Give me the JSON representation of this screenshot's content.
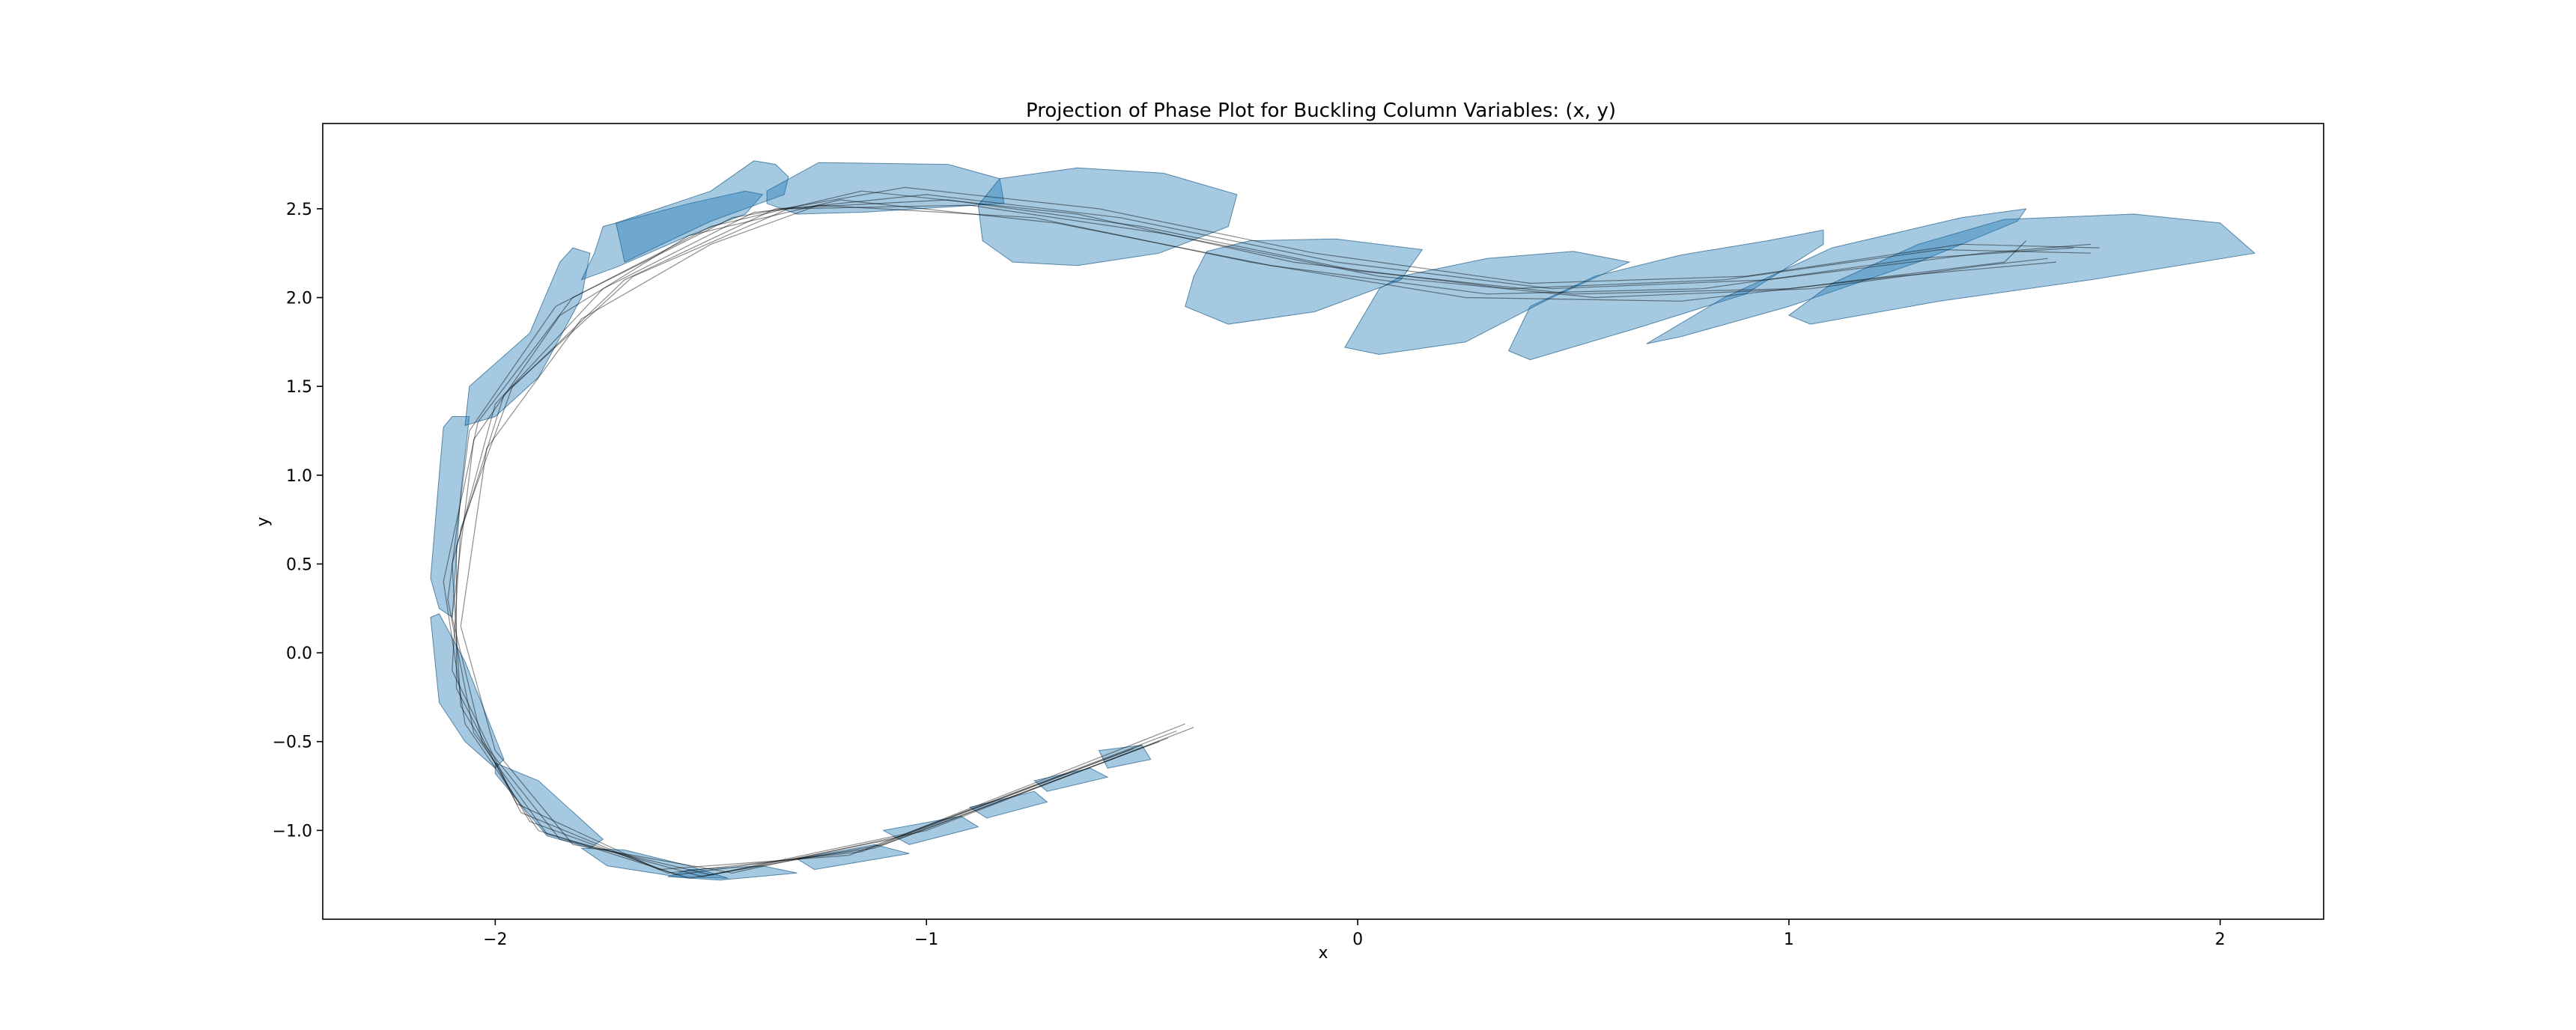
{
  "chart_data": {
    "type": "line",
    "title": "Projection of Phase Plot for Buckling Column Variables: (x, y)",
    "xlabel": "x",
    "ylabel": "y",
    "xlim": [
      -2.4,
      2.24
    ],
    "ylim": [
      -1.5,
      2.98
    ],
    "xticks": [
      -2,
      -1,
      0,
      1,
      2
    ],
    "xtick_labels": [
      "−2",
      "−1",
      "0",
      "1",
      "2"
    ],
    "yticks": [
      -1.0,
      -0.5,
      0.0,
      0.5,
      1.0,
      1.5,
      2.0,
      2.5
    ],
    "ytick_labels": [
      "−1.0",
      "−0.5",
      "0.0",
      "0.5",
      "1.0",
      "1.5",
      "2.0",
      "2.5"
    ],
    "grid": false,
    "colors": {
      "region_fill": "#1f77b4",
      "trajectory": "#000000"
    },
    "reachable_regions": [
      [
        [
          -0.6,
          -0.55
        ],
        [
          -0.5,
          -0.52
        ],
        [
          -0.48,
          -0.6
        ],
        [
          -0.58,
          -0.65
        ]
      ],
      [
        [
          -0.75,
          -0.72
        ],
        [
          -0.62,
          -0.65
        ],
        [
          -0.58,
          -0.7
        ],
        [
          -0.72,
          -0.78
        ]
      ],
      [
        [
          -0.9,
          -0.87
        ],
        [
          -0.75,
          -0.78
        ],
        [
          -0.72,
          -0.84
        ],
        [
          -0.86,
          -0.93
        ]
      ],
      [
        [
          -1.1,
          -1.0
        ],
        [
          -0.92,
          -0.92
        ],
        [
          -0.88,
          -0.98
        ],
        [
          -1.04,
          -1.08
        ]
      ],
      [
        [
          -1.3,
          -1.16
        ],
        [
          -1.12,
          -1.08
        ],
        [
          -1.04,
          -1.13
        ],
        [
          -1.26,
          -1.22
        ]
      ],
      [
        [
          -1.55,
          -1.22
        ],
        [
          -1.38,
          -1.2
        ],
        [
          -1.3,
          -1.24
        ],
        [
          -1.48,
          -1.28
        ],
        [
          -1.6,
          -1.26
        ]
      ],
      [
        [
          -1.8,
          -1.1
        ],
        [
          -1.7,
          -1.11
        ],
        [
          -1.55,
          -1.2
        ],
        [
          -1.46,
          -1.27
        ],
        [
          -1.58,
          -1.26
        ],
        [
          -1.74,
          -1.2
        ]
      ],
      [
        [
          -2.0,
          -0.62
        ],
        [
          -1.9,
          -0.72
        ],
        [
          -1.75,
          -1.05
        ],
        [
          -1.78,
          -1.1
        ],
        [
          -1.88,
          -1.03
        ],
        [
          -2.0,
          -0.68
        ]
      ],
      [
        [
          -2.13,
          0.22
        ],
        [
          -2.07,
          -0.05
        ],
        [
          -1.98,
          -0.6
        ],
        [
          -2.0,
          -0.65
        ],
        [
          -2.07,
          -0.5
        ],
        [
          -2.13,
          -0.28
        ],
        [
          -2.15,
          0.2
        ]
      ],
      [
        [
          -2.1,
          1.33
        ],
        [
          -2.06,
          1.33
        ],
        [
          -2.08,
          0.9
        ],
        [
          -2.1,
          0.2
        ],
        [
          -2.13,
          0.25
        ],
        [
          -2.15,
          0.42
        ],
        [
          -2.13,
          1.0
        ],
        [
          -2.12,
          1.27
        ]
      ],
      [
        [
          -2.06,
          1.5
        ],
        [
          -1.92,
          1.8
        ],
        [
          -1.85,
          2.2
        ],
        [
          -1.82,
          2.28
        ],
        [
          -1.78,
          2.25
        ],
        [
          -1.8,
          2.0
        ],
        [
          -1.9,
          1.55
        ],
        [
          -2.0,
          1.33
        ],
        [
          -2.07,
          1.28
        ]
      ],
      [
        [
          -1.77,
          2.25
        ],
        [
          -1.75,
          2.4
        ],
        [
          -1.55,
          2.53
        ],
        [
          -1.42,
          2.6
        ],
        [
          -1.38,
          2.58
        ],
        [
          -1.42,
          2.47
        ],
        [
          -1.55,
          2.35
        ],
        [
          -1.72,
          2.17
        ],
        [
          -1.8,
          2.1
        ]
      ],
      [
        [
          -1.72,
          2.42
        ],
        [
          -1.5,
          2.6
        ],
        [
          -1.4,
          2.77
        ],
        [
          -1.35,
          2.75
        ],
        [
          -1.32,
          2.68
        ],
        [
          -1.33,
          2.58
        ],
        [
          -1.5,
          2.43
        ],
        [
          -1.7,
          2.2
        ]
      ],
      [
        [
          -1.37,
          2.6
        ],
        [
          -1.25,
          2.76
        ],
        [
          -0.95,
          2.75
        ],
        [
          -0.83,
          2.67
        ],
        [
          -0.82,
          2.53
        ],
        [
          -1.15,
          2.48
        ],
        [
          -1.3,
          2.47
        ],
        [
          -1.37,
          2.53
        ]
      ],
      [
        [
          -0.88,
          2.52
        ],
        [
          -0.83,
          2.67
        ],
        [
          -0.65,
          2.73
        ],
        [
          -0.45,
          2.7
        ],
        [
          -0.28,
          2.58
        ],
        [
          -0.3,
          2.4
        ],
        [
          -0.46,
          2.25
        ],
        [
          -0.65,
          2.18
        ],
        [
          -0.8,
          2.2
        ],
        [
          -0.87,
          2.32
        ]
      ],
      [
        [
          -0.38,
          2.12
        ],
        [
          -0.35,
          2.26
        ],
        [
          -0.25,
          2.32
        ],
        [
          -0.05,
          2.33
        ],
        [
          0.15,
          2.27
        ],
        [
          0.1,
          2.1
        ],
        [
          -0.1,
          1.92
        ],
        [
          -0.3,
          1.85
        ],
        [
          -0.4,
          1.95
        ]
      ],
      [
        [
          0.05,
          2.05
        ],
        [
          0.1,
          2.12
        ],
        [
          0.3,
          2.22
        ],
        [
          0.5,
          2.26
        ],
        [
          0.63,
          2.2
        ],
        [
          0.45,
          2.0
        ],
        [
          0.25,
          1.75
        ],
        [
          0.05,
          1.68
        ],
        [
          -0.03,
          1.72
        ]
      ],
      [
        [
          0.35,
          1.7
        ],
        [
          0.4,
          1.95
        ],
        [
          0.55,
          2.12
        ],
        [
          0.75,
          2.24
        ],
        [
          0.95,
          2.32
        ],
        [
          1.08,
          2.38
        ],
        [
          1.08,
          2.3
        ],
        [
          0.9,
          2.02
        ],
        [
          0.65,
          1.83
        ],
        [
          0.4,
          1.65
        ]
      ],
      [
        [
          0.67,
          1.74
        ],
        [
          0.85,
          2.0
        ],
        [
          1.1,
          2.28
        ],
        [
          1.4,
          2.45
        ],
        [
          1.55,
          2.5
        ],
        [
          1.53,
          2.43
        ],
        [
          1.3,
          2.2
        ],
        [
          1.0,
          1.95
        ],
        [
          0.75,
          1.78
        ]
      ],
      [
        [
          1.0,
          1.9
        ],
        [
          1.1,
          2.08
        ],
        [
          1.3,
          2.3
        ],
        [
          1.5,
          2.44
        ],
        [
          1.8,
          2.47
        ],
        [
          2.0,
          2.42
        ],
        [
          2.08,
          2.25
        ],
        [
          1.7,
          2.1
        ],
        [
          1.35,
          1.98
        ],
        [
          1.05,
          1.85
        ]
      ]
    ],
    "trajectories": [
      [
        [
          -0.4,
          -0.4
        ],
        [
          -1.05,
          -1.02
        ],
        [
          -1.5,
          -1.25
        ],
        [
          -1.85,
          -1.05
        ],
        [
          -2.03,
          -0.5
        ],
        [
          -2.1,
          0.2
        ],
        [
          -2.05,
          1.2
        ],
        [
          -1.85,
          1.9
        ],
        [
          -1.55,
          2.35
        ],
        [
          -1.2,
          2.55
        ],
        [
          -0.7,
          2.42
        ],
        [
          -0.2,
          2.18
        ],
        [
          0.3,
          2.02
        ],
        [
          0.8,
          2.05
        ],
        [
          1.3,
          2.22
        ],
        [
          1.66,
          2.28
        ]
      ],
      [
        [
          -0.42,
          -0.44
        ],
        [
          -1.08,
          -1.05
        ],
        [
          -1.52,
          -1.26
        ],
        [
          -1.88,
          -1.02
        ],
        [
          -2.05,
          -0.45
        ],
        [
          -2.11,
          0.3
        ],
        [
          -2.06,
          1.25
        ],
        [
          -1.86,
          1.95
        ],
        [
          -1.5,
          2.4
        ],
        [
          -1.15,
          2.6
        ],
        [
          -0.65,
          2.47
        ],
        [
          -0.15,
          2.2
        ],
        [
          0.35,
          2.05
        ],
        [
          0.85,
          2.1
        ],
        [
          1.35,
          2.27
        ],
        [
          1.7,
          2.25
        ]
      ],
      [
        [
          -0.44,
          -0.48
        ],
        [
          -1.1,
          -1.08
        ],
        [
          -1.55,
          -1.27
        ],
        [
          -1.9,
          -1.0
        ],
        [
          -2.07,
          -0.4
        ],
        [
          -2.12,
          0.4
        ],
        [
          -2.04,
          1.3
        ],
        [
          -1.82,
          2.0
        ],
        [
          -1.45,
          2.45
        ],
        [
          -1.05,
          2.62
        ],
        [
          -0.6,
          2.5
        ],
        [
          -0.1,
          2.25
        ],
        [
          0.4,
          2.08
        ],
        [
          0.9,
          2.12
        ],
        [
          1.4,
          2.3
        ],
        [
          1.72,
          2.28
        ]
      ],
      [
        [
          -0.46,
          -0.5
        ],
        [
          -1.12,
          -1.1
        ],
        [
          -1.58,
          -1.25
        ],
        [
          -1.92,
          -0.95
        ],
        [
          -2.08,
          -0.3
        ],
        [
          -2.1,
          0.5
        ],
        [
          -2.0,
          1.4
        ],
        [
          -1.75,
          2.05
        ],
        [
          -1.4,
          2.48
        ],
        [
          -1.0,
          2.58
        ],
        [
          -0.55,
          2.45
        ],
        [
          -0.05,
          2.2
        ],
        [
          0.45,
          2.05
        ],
        [
          0.95,
          2.1
        ],
        [
          1.45,
          2.25
        ],
        [
          1.7,
          2.3
        ]
      ],
      [
        [
          -0.5,
          -0.52
        ],
        [
          -1.15,
          -1.12
        ],
        [
          -1.6,
          -1.24
        ],
        [
          -1.94,
          -0.9
        ],
        [
          -2.09,
          -0.2
        ],
        [
          -2.09,
          0.6
        ],
        [
          -1.98,
          1.45
        ],
        [
          -1.7,
          2.1
        ],
        [
          -1.35,
          2.5
        ],
        [
          -0.95,
          2.55
        ],
        [
          -0.5,
          2.4
        ],
        [
          0.0,
          2.15
        ],
        [
          0.5,
          2.02
        ],
        [
          1.0,
          2.05
        ],
        [
          1.5,
          2.2
        ],
        [
          1.55,
          2.32
        ]
      ],
      [
        [
          -0.52,
          -0.54
        ],
        [
          -1.18,
          -1.14
        ],
        [
          -1.62,
          -1.22
        ],
        [
          -1.95,
          -0.85
        ],
        [
          -2.1,
          -0.1
        ],
        [
          -2.08,
          0.7
        ],
        [
          -1.96,
          1.5
        ],
        [
          -1.68,
          2.12
        ],
        [
          -1.32,
          2.5
        ],
        [
          -0.9,
          2.52
        ],
        [
          -0.45,
          2.36
        ],
        [
          0.05,
          2.12
        ],
        [
          0.55,
          2.0
        ],
        [
          1.05,
          2.05
        ],
        [
          1.45,
          2.18
        ],
        [
          1.6,
          2.22
        ]
      ],
      [
        [
          -0.38,
          -0.42
        ],
        [
          -1.0,
          -1.0
        ],
        [
          -1.45,
          -1.24
        ],
        [
          -1.82,
          -1.08
        ],
        [
          -2.0,
          -0.55
        ],
        [
          -2.08,
          0.15
        ],
        [
          -2.02,
          1.15
        ],
        [
          -1.8,
          1.88
        ],
        [
          -1.5,
          2.3
        ],
        [
          -1.25,
          2.52
        ],
        [
          -0.75,
          2.45
        ],
        [
          -0.25,
          2.2
        ],
        [
          0.25,
          2.0
        ],
        [
          0.75,
          1.98
        ],
        [
          1.25,
          2.12
        ],
        [
          1.62,
          2.2
        ]
      ]
    ]
  }
}
